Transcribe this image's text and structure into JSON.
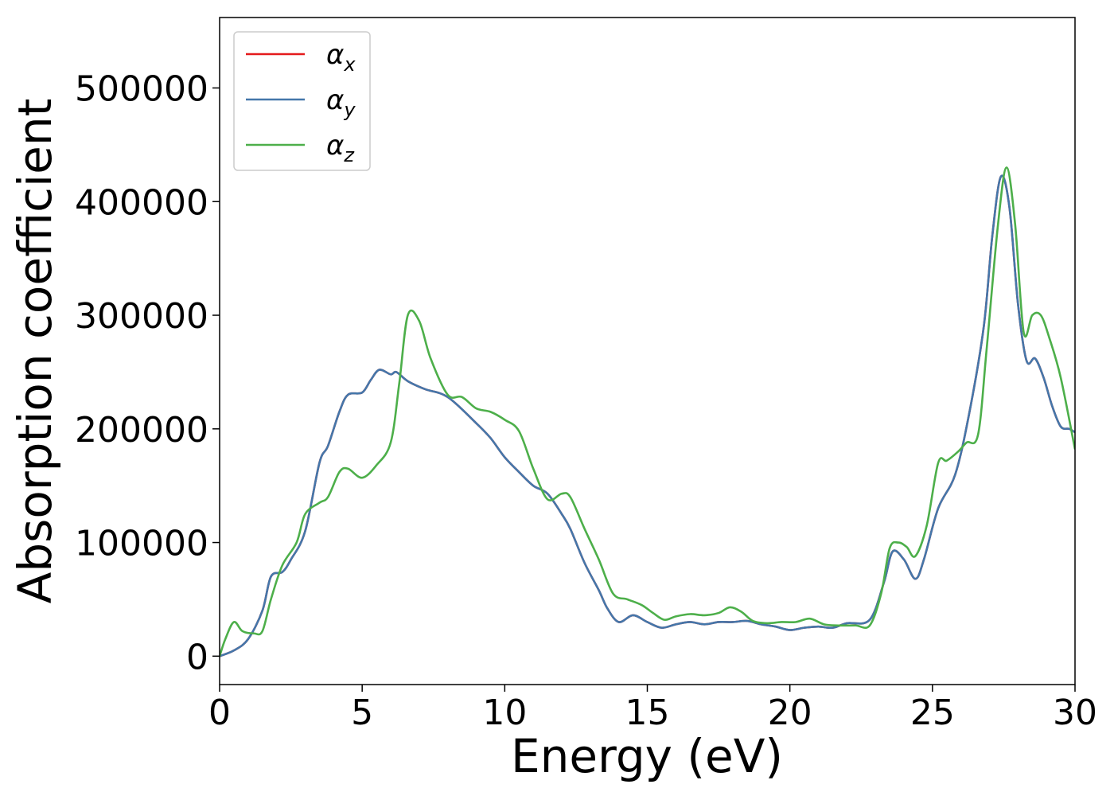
{
  "chart_data": {
    "type": "line",
    "title": "",
    "xlabel": "Energy (eV)",
    "ylabel": "Absorption coefficient",
    "xlim": [
      0,
      30
    ],
    "ylim": [
      -25000,
      562000
    ],
    "xticks": [
      0,
      5,
      10,
      15,
      20,
      25,
      30
    ],
    "yticks": [
      0,
      100000,
      200000,
      300000,
      400000,
      500000
    ],
    "grid": false,
    "legend_position": "top-left",
    "series": [
      {
        "name": "αx",
        "symbol": "α",
        "subscript": "x",
        "color": "#e41a1c",
        "points": [
          [
            0,
            0
          ],
          [
            0.5,
            5000
          ],
          [
            1,
            15000
          ],
          [
            1.5,
            40000
          ],
          [
            1.8,
            70000
          ],
          [
            2.2,
            74000
          ],
          [
            2.5,
            85000
          ],
          [
            3,
            110000
          ],
          [
            3.5,
            170000
          ],
          [
            3.8,
            185000
          ],
          [
            4.2,
            215000
          ],
          [
            4.5,
            230000
          ],
          [
            5,
            232000
          ],
          [
            5.3,
            243000
          ],
          [
            5.6,
            252000
          ],
          [
            6,
            248000
          ],
          [
            6.2,
            250000
          ],
          [
            6.6,
            242000
          ],
          [
            7.2,
            235000
          ],
          [
            8,
            228000
          ],
          [
            9,
            205000
          ],
          [
            9.5,
            192000
          ],
          [
            10,
            175000
          ],
          [
            10.5,
            162000
          ],
          [
            11,
            150000
          ],
          [
            11.5,
            143000
          ],
          [
            12,
            125000
          ],
          [
            12.3,
            112000
          ],
          [
            12.8,
            82000
          ],
          [
            13.3,
            58000
          ],
          [
            13.6,
            42000
          ],
          [
            14,
            30000
          ],
          [
            14.5,
            36000
          ],
          [
            15,
            30000
          ],
          [
            15.5,
            25000
          ],
          [
            16,
            28000
          ],
          [
            16.5,
            30000
          ],
          [
            17,
            28000
          ],
          [
            17.5,
            30000
          ],
          [
            18,
            30000
          ],
          [
            18.5,
            31000
          ],
          [
            19,
            28000
          ],
          [
            19.5,
            26000
          ],
          [
            20,
            23000
          ],
          [
            20.5,
            25000
          ],
          [
            21,
            26000
          ],
          [
            21.5,
            25000
          ],
          [
            22,
            29000
          ],
          [
            22.8,
            32000
          ],
          [
            23.3,
            65000
          ],
          [
            23.6,
            92000
          ],
          [
            24,
            85000
          ],
          [
            24.4,
            68000
          ],
          [
            24.7,
            85000
          ],
          [
            25.2,
            130000
          ],
          [
            25.8,
            160000
          ],
          [
            26.3,
            215000
          ],
          [
            26.8,
            290000
          ],
          [
            27.1,
            370000
          ],
          [
            27.4,
            422000
          ],
          [
            27.7,
            395000
          ],
          [
            28,
            310000
          ],
          [
            28.3,
            260000
          ],
          [
            28.6,
            262000
          ],
          [
            28.9,
            245000
          ],
          [
            29.2,
            220000
          ],
          [
            29.5,
            202000
          ],
          [
            29.8,
            200000
          ],
          [
            30,
            197000
          ]
        ]
      },
      {
        "name": "αy",
        "symbol": "α",
        "subscript": "y",
        "color": "#4477aa",
        "points": [
          [
            0,
            0
          ],
          [
            0.5,
            5000
          ],
          [
            1,
            15000
          ],
          [
            1.5,
            40000
          ],
          [
            1.8,
            70000
          ],
          [
            2.2,
            74000
          ],
          [
            2.5,
            85000
          ],
          [
            3,
            110000
          ],
          [
            3.5,
            170000
          ],
          [
            3.8,
            185000
          ],
          [
            4.2,
            215000
          ],
          [
            4.5,
            230000
          ],
          [
            5,
            232000
          ],
          [
            5.3,
            243000
          ],
          [
            5.6,
            252000
          ],
          [
            6,
            248000
          ],
          [
            6.2,
            250000
          ],
          [
            6.6,
            242000
          ],
          [
            7.2,
            235000
          ],
          [
            8,
            228000
          ],
          [
            9,
            205000
          ],
          [
            9.5,
            192000
          ],
          [
            10,
            175000
          ],
          [
            10.5,
            162000
          ],
          [
            11,
            150000
          ],
          [
            11.5,
            143000
          ],
          [
            12,
            125000
          ],
          [
            12.3,
            112000
          ],
          [
            12.8,
            82000
          ],
          [
            13.3,
            58000
          ],
          [
            13.6,
            42000
          ],
          [
            14,
            30000
          ],
          [
            14.5,
            36000
          ],
          [
            15,
            30000
          ],
          [
            15.5,
            25000
          ],
          [
            16,
            28000
          ],
          [
            16.5,
            30000
          ],
          [
            17,
            28000
          ],
          [
            17.5,
            30000
          ],
          [
            18,
            30000
          ],
          [
            18.5,
            31000
          ],
          [
            19,
            28000
          ],
          [
            19.5,
            26000
          ],
          [
            20,
            23000
          ],
          [
            20.5,
            25000
          ],
          [
            21,
            26000
          ],
          [
            21.5,
            25000
          ],
          [
            22,
            29000
          ],
          [
            22.8,
            32000
          ],
          [
            23.3,
            65000
          ],
          [
            23.6,
            92000
          ],
          [
            24,
            85000
          ],
          [
            24.4,
            68000
          ],
          [
            24.7,
            85000
          ],
          [
            25.2,
            130000
          ],
          [
            25.8,
            160000
          ],
          [
            26.3,
            215000
          ],
          [
            26.8,
            290000
          ],
          [
            27.1,
            370000
          ],
          [
            27.4,
            422000
          ],
          [
            27.7,
            395000
          ],
          [
            28,
            310000
          ],
          [
            28.3,
            260000
          ],
          [
            28.6,
            262000
          ],
          [
            28.9,
            245000
          ],
          [
            29.2,
            220000
          ],
          [
            29.5,
            202000
          ],
          [
            29.8,
            200000
          ],
          [
            30,
            197000
          ]
        ]
      },
      {
        "name": "αz",
        "symbol": "α",
        "subscript": "z",
        "color": "#4daf4a",
        "points": [
          [
            0,
            0
          ],
          [
            0.2,
            15000
          ],
          [
            0.5,
            30000
          ],
          [
            0.8,
            22000
          ],
          [
            1.2,
            20000
          ],
          [
            1.5,
            22000
          ],
          [
            1.8,
            50000
          ],
          [
            2.2,
            80000
          ],
          [
            2.7,
            100000
          ],
          [
            3,
            125000
          ],
          [
            3.5,
            135000
          ],
          [
            3.8,
            140000
          ],
          [
            4.2,
            162000
          ],
          [
            4.5,
            165000
          ],
          [
            5,
            157000
          ],
          [
            5.5,
            168000
          ],
          [
            6,
            188000
          ],
          [
            6.3,
            240000
          ],
          [
            6.6,
            300000
          ],
          [
            7,
            295000
          ],
          [
            7.4,
            262000
          ],
          [
            8,
            230000
          ],
          [
            8.5,
            228000
          ],
          [
            9,
            218000
          ],
          [
            9.5,
            215000
          ],
          [
            10,
            208000
          ],
          [
            10.5,
            198000
          ],
          [
            11,
            165000
          ],
          [
            11.5,
            138000
          ],
          [
            12,
            143000
          ],
          [
            12.3,
            140000
          ],
          [
            12.8,
            112000
          ],
          [
            13.3,
            85000
          ],
          [
            13.8,
            55000
          ],
          [
            14.3,
            50000
          ],
          [
            14.8,
            45000
          ],
          [
            15.2,
            38000
          ],
          [
            15.6,
            32000
          ],
          [
            16,
            35000
          ],
          [
            16.5,
            37000
          ],
          [
            17,
            36000
          ],
          [
            17.5,
            38000
          ],
          [
            17.9,
            43000
          ],
          [
            18.3,
            39000
          ],
          [
            18.7,
            31000
          ],
          [
            19.2,
            29000
          ],
          [
            19.7,
            30000
          ],
          [
            20.2,
            30000
          ],
          [
            20.7,
            33000
          ],
          [
            21.2,
            28000
          ],
          [
            21.7,
            27000
          ],
          [
            22.3,
            27000
          ],
          [
            22.8,
            27000
          ],
          [
            23.2,
            55000
          ],
          [
            23.5,
            95000
          ],
          [
            23.8,
            100000
          ],
          [
            24.1,
            96000
          ],
          [
            24.4,
            88000
          ],
          [
            24.8,
            115000
          ],
          [
            25.2,
            170000
          ],
          [
            25.5,
            172000
          ],
          [
            25.9,
            180000
          ],
          [
            26.2,
            188000
          ],
          [
            26.6,
            195000
          ],
          [
            26.9,
            270000
          ],
          [
            27.3,
            380000
          ],
          [
            27.6,
            430000
          ],
          [
            27.9,
            380000
          ],
          [
            28.2,
            285000
          ],
          [
            28.5,
            300000
          ],
          [
            28.8,
            300000
          ],
          [
            29.1,
            280000
          ],
          [
            29.5,
            245000
          ],
          [
            30,
            182000
          ]
        ]
      }
    ]
  }
}
